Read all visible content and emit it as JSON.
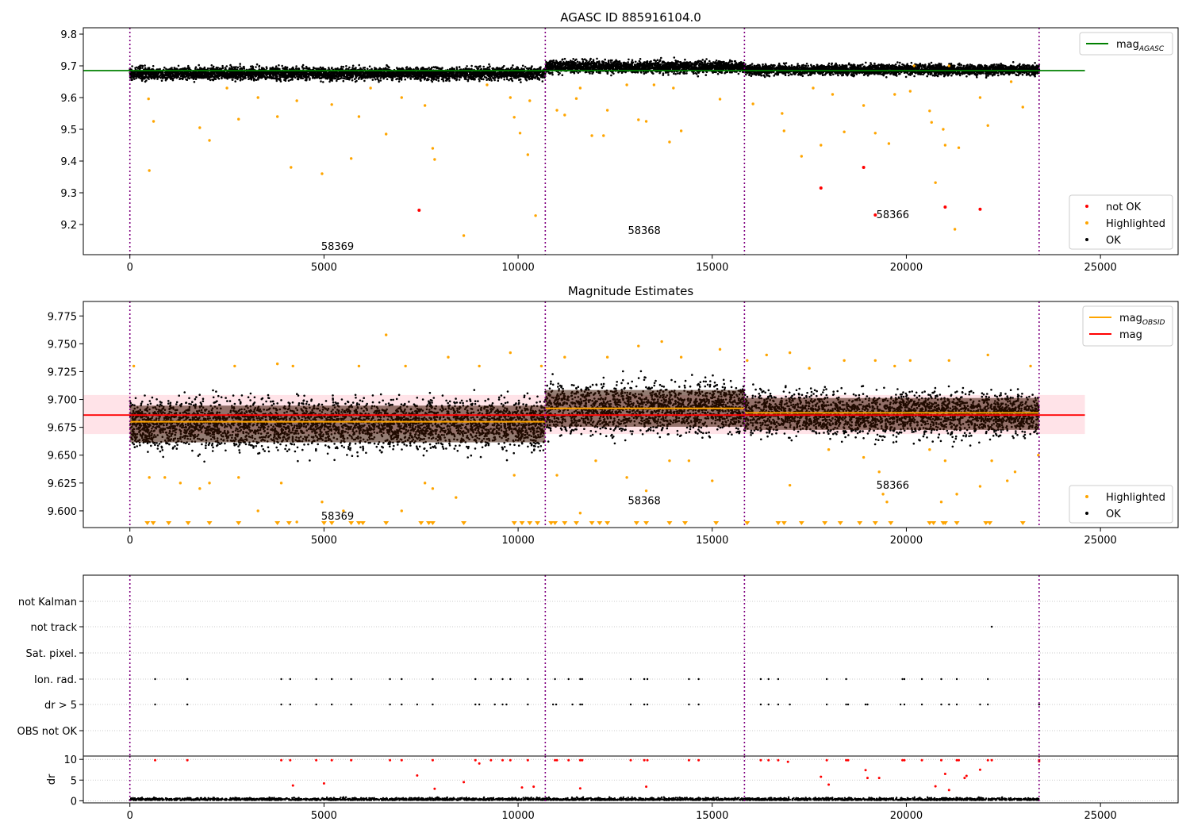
{
  "figure": {
    "top_title": "AGASC ID 885916104.0",
    "mid_title": "Magnitude Estimates"
  },
  "colors": {
    "ok": "#000000",
    "highlighted": "#ffa500",
    "not_ok": "#ff0000",
    "agasc_line": "#008000",
    "obsid_line": "#ffa500",
    "mag_line": "#ff0000",
    "mag_band": "#ffc0cb",
    "obsid_boundary": "#800080",
    "dense_band": "#3b1200"
  },
  "chart_data": [
    {
      "id": "top",
      "type": "scatter",
      "title": "AGASC ID 885916104.0",
      "xlim": [
        -1200,
        27000
      ],
      "ylim": [
        9.105,
        9.82
      ],
      "xticks": [
        0,
        5000,
        10000,
        15000,
        20000,
        25000
      ],
      "yticks": [
        9.2,
        9.3,
        9.4,
        9.5,
        9.6,
        9.7,
        9.8
      ],
      "obsid_boundaries": [
        0,
        10700,
        15830,
        23420
      ],
      "hlines": [
        {
          "name": "mag_AGASC",
          "y": 9.685,
          "x": [
            -1200,
            24600
          ],
          "color": "#008000"
        }
      ],
      "ok_band": {
        "segments": [
          {
            "x": [
              0,
              10700
            ],
            "center": 9.676,
            "halfwidth": 0.026
          },
          {
            "x": [
              10700,
              15830
            ],
            "center": 9.697,
            "halfwidth": 0.026
          },
          {
            "x": [
              15830,
              23420
            ],
            "center": 9.688,
            "halfwidth": 0.022
          }
        ]
      },
      "highlighted_points": [
        [
          500,
          9.37
        ],
        [
          610,
          9.525
        ],
        [
          480,
          9.596
        ],
        [
          1800,
          9.505
        ],
        [
          2050,
          9.465
        ],
        [
          2800,
          9.532
        ],
        [
          3800,
          9.54
        ],
        [
          4150,
          9.38
        ],
        [
          4950,
          9.36
        ],
        [
          5200,
          9.578
        ],
        [
          5700,
          9.408
        ],
        [
          5900,
          9.54
        ],
        [
          6600,
          9.485
        ],
        [
          7000,
          9.6
        ],
        [
          7600,
          9.575
        ],
        [
          7800,
          9.44
        ],
        [
          7850,
          9.405
        ],
        [
          8600,
          9.165
        ],
        [
          9900,
          9.538
        ],
        [
          10050,
          9.488
        ],
        [
          10250,
          9.42
        ],
        [
          10450,
          9.228
        ],
        [
          10300,
          9.59
        ],
        [
          11000,
          9.56
        ],
        [
          11200,
          9.545
        ],
        [
          11500,
          9.597
        ],
        [
          11900,
          9.48
        ],
        [
          12200,
          9.48
        ],
        [
          12300,
          9.56
        ],
        [
          13100,
          9.53
        ],
        [
          13300,
          9.525
        ],
        [
          13900,
          9.46
        ],
        [
          14200,
          9.495
        ],
        [
          15200,
          9.595
        ],
        [
          16050,
          9.58
        ],
        [
          16800,
          9.55
        ],
        [
          16850,
          9.495
        ],
        [
          17300,
          9.415
        ],
        [
          17800,
          9.45
        ],
        [
          18400,
          9.492
        ],
        [
          18900,
          9.575
        ],
        [
          19200,
          9.488
        ],
        [
          19550,
          9.455
        ],
        [
          20600,
          9.558
        ],
        [
          20650,
          9.522
        ],
        [
          20750,
          9.332
        ],
        [
          20950,
          9.5
        ],
        [
          21000,
          9.45
        ],
        [
          21250,
          9.185
        ],
        [
          21350,
          9.442
        ],
        [
          22100,
          9.512
        ],
        [
          9200,
          9.64
        ],
        [
          9800,
          9.6
        ],
        [
          12800,
          9.64
        ],
        [
          14000,
          9.63
        ],
        [
          18100,
          9.61
        ],
        [
          20100,
          9.62
        ],
        [
          2500,
          9.63
        ],
        [
          6200,
          9.63
        ],
        [
          3300,
          9.6
        ],
        [
          4300,
          9.59
        ],
        [
          11600,
          9.63
        ],
        [
          19700,
          9.61
        ],
        [
          21900,
          9.6
        ],
        [
          23000,
          9.57
        ],
        [
          13500,
          9.64
        ],
        [
          17600,
          9.63
        ],
        [
          22700,
          9.65
        ],
        [
          20200,
          9.7
        ],
        [
          21100,
          9.7
        ]
      ],
      "not_ok_points": [
        [
          7450,
          9.245
        ],
        [
          17800,
          9.315
        ],
        [
          18900,
          9.38
        ],
        [
          19200,
          9.23
        ],
        [
          21000,
          9.255
        ],
        [
          21900,
          9.248
        ]
      ],
      "annotations": [
        {
          "text": "58369",
          "x": 5350,
          "y": 9.12
        },
        {
          "text": "58368",
          "x": 13250,
          "y": 9.17
        },
        {
          "text": "58366",
          "x": 19650,
          "y": 9.22
        }
      ],
      "legends": [
        {
          "position": "top-right",
          "entries": [
            {
              "label": "mag",
              "sub": "AGASC",
              "kind": "line",
              "color": "#008000"
            }
          ]
        },
        {
          "position": "bottom-right",
          "entries": [
            {
              "label": "not OK",
              "kind": "dot",
              "color": "#ff0000"
            },
            {
              "label": "Highlighted",
              "kind": "dot",
              "color": "#ffa500"
            },
            {
              "label": "OK",
              "kind": "dot",
              "color": "#000000"
            }
          ]
        }
      ]
    },
    {
      "id": "mid",
      "type": "scatter",
      "title": "Magnitude Estimates",
      "xlim": [
        -1200,
        27000
      ],
      "ylim": [
        9.585,
        9.788
      ],
      "xticks": [
        0,
        5000,
        10000,
        15000,
        20000,
        25000
      ],
      "yticks": [
        9.6,
        9.625,
        9.65,
        9.675,
        9.7,
        9.725,
        9.75,
        9.775
      ],
      "obsid_boundaries": [
        0,
        10700,
        15830,
        23420
      ],
      "mag_band": {
        "y": [
          9.669,
          9.704
        ],
        "x": [
          -1200,
          24600
        ]
      },
      "hlines": [
        {
          "name": "mag",
          "y": 9.686,
          "x": [
            -1200,
            24600
          ],
          "color": "#ff0000"
        }
      ],
      "obsid_segments": [
        {
          "x": [
            0,
            10700
          ],
          "y": 9.68
        },
        {
          "x": [
            10700,
            15830
          ],
          "y": 9.692
        },
        {
          "x": [
            15830,
            23420
          ],
          "y": 9.688
        }
      ],
      "ok_band": {
        "segments": [
          {
            "x": [
              0,
              10700
            ],
            "center": 9.678,
            "halfwidth": 0.03
          },
          {
            "x": [
              10700,
              15830
            ],
            "center": 9.692,
            "halfwidth": 0.03
          },
          {
            "x": [
              15830,
              23420
            ],
            "center": 9.687,
            "halfwidth": 0.026
          }
        ]
      },
      "highlighted_points": [
        [
          100,
          9.73
        ],
        [
          500,
          9.63
        ],
        [
          900,
          9.63
        ],
        [
          1300,
          9.625
        ],
        [
          1800,
          9.62
        ],
        [
          2050,
          9.625
        ],
        [
          2700,
          9.73
        ],
        [
          2800,
          9.63
        ],
        [
          3300,
          9.6
        ],
        [
          3800,
          9.732
        ],
        [
          3900,
          9.625
        ],
        [
          4200,
          9.73
        ],
        [
          4300,
          9.59
        ],
        [
          4950,
          9.608
        ],
        [
          5500,
          9.6
        ],
        [
          5900,
          9.73
        ],
        [
          6600,
          9.758
        ],
        [
          7000,
          9.6
        ],
        [
          7100,
          9.73
        ],
        [
          7600,
          9.625
        ],
        [
          7800,
          9.62
        ],
        [
          8200,
          9.738
        ],
        [
          8400,
          9.612
        ],
        [
          9000,
          9.73
        ],
        [
          9800,
          9.742
        ],
        [
          9900,
          9.632
        ],
        [
          10600,
          9.73
        ],
        [
          11000,
          9.632
        ],
        [
          11200,
          9.738
        ],
        [
          11600,
          9.598
        ],
        [
          12000,
          9.645
        ],
        [
          12300,
          9.738
        ],
        [
          12800,
          9.63
        ],
        [
          13100,
          9.748
        ],
        [
          13300,
          9.618
        ],
        [
          13700,
          9.752
        ],
        [
          13900,
          9.645
        ],
        [
          14200,
          9.738
        ],
        [
          14400,
          9.645
        ],
        [
          15000,
          9.627
        ],
        [
          15200,
          9.745
        ],
        [
          15900,
          9.735
        ],
        [
          16400,
          9.74
        ],
        [
          17000,
          9.742
        ],
        [
          17000,
          9.623
        ],
        [
          17500,
          9.728
        ],
        [
          18000,
          9.655
        ],
        [
          18400,
          9.735
        ],
        [
          18900,
          9.648
        ],
        [
          19200,
          9.735
        ],
        [
          19300,
          9.635
        ],
        [
          19400,
          9.615
        ],
        [
          19500,
          9.608
        ],
        [
          19700,
          9.73
        ],
        [
          20100,
          9.735
        ],
        [
          20600,
          9.655
        ],
        [
          20900,
          9.608
        ],
        [
          21000,
          9.645
        ],
        [
          21100,
          9.735
        ],
        [
          21300,
          9.615
        ],
        [
          21900,
          9.622
        ],
        [
          22100,
          9.74
        ],
        [
          22200,
          9.645
        ],
        [
          22600,
          9.627
        ],
        [
          22800,
          9.635
        ],
        [
          23200,
          9.73
        ],
        [
          23400,
          9.65
        ]
      ],
      "below_range_markers": [
        450,
        600,
        1000,
        1500,
        2050,
        2800,
        3800,
        4100,
        5000,
        5200,
        5700,
        5900,
        6000,
        6600,
        7500,
        7700,
        7800,
        8600,
        9900,
        10100,
        10300,
        10500,
        10850,
        10950,
        11200,
        11500,
        11900,
        12100,
        12300,
        13050,
        13300,
        13900,
        14300,
        15100,
        15900,
        16700,
        16850,
        17300,
        17900,
        18300,
        18800,
        19200,
        19600,
        20600,
        20700,
        20950,
        21000,
        21300,
        22050,
        22150,
        23000
      ],
      "annotations": [
        {
          "text": "58369",
          "x": 5350,
          "y": 9.592
        },
        {
          "text": "58368",
          "x": 13250,
          "y": 9.606
        },
        {
          "text": "58366",
          "x": 19650,
          "y": 9.62
        }
      ],
      "legends": [
        {
          "position": "top-right",
          "entries": [
            {
              "label": "mag",
              "sub": "OBSID",
              "kind": "line",
              "color": "#ffa500"
            },
            {
              "label": "mag",
              "kind": "line",
              "color": "#ff0000"
            }
          ]
        },
        {
          "position": "bottom-right",
          "entries": [
            {
              "label": "Highlighted",
              "kind": "dot",
              "color": "#ffa500"
            },
            {
              "label": "OK",
              "kind": "dot",
              "color": "#000000"
            }
          ]
        }
      ]
    },
    {
      "id": "flags",
      "type": "scatter",
      "xlim": [
        -1200,
        27000
      ],
      "categories": [
        "not Kalman",
        "not track",
        "Sat. pixel.",
        "Ion. rad.",
        "dr > 5",
        "OBS not OK"
      ],
      "obsid_boundaries": [
        0,
        10700,
        15830,
        23420
      ],
      "flag_points": {
        "not track": [
          22200
        ],
        "Ion. rad.": [
          650,
          1480,
          3900,
          4130,
          4800,
          5200,
          5700,
          6700,
          7000,
          7800,
          8900,
          9300,
          9600,
          9800,
          10250,
          10950,
          11300,
          11600,
          11650,
          12900,
          13250,
          13330,
          14400,
          14650,
          16250,
          16450,
          16700,
          17950,
          18450,
          19900,
          19950,
          20400,
          20900,
          21300,
          22100,
          23420
        ],
        "dr > 5": [
          650,
          1480,
          3900,
          4130,
          4800,
          5200,
          5700,
          6700,
          7000,
          7400,
          7800,
          8900,
          9000,
          9400,
          9600,
          9700,
          10250,
          10900,
          10980,
          11400,
          11600,
          11650,
          12900,
          13250,
          13330,
          14400,
          14650,
          16250,
          16450,
          16700,
          17000,
          17950,
          18450,
          18500,
          18950,
          19000,
          19850,
          19950,
          20400,
          20900,
          21100,
          21300,
          21900,
          22100,
          23420
        ]
      }
    },
    {
      "id": "dr",
      "type": "scatter",
      "ylabel": "dr",
      "xlim": [
        -1200,
        27000
      ],
      "ylim": [
        -0.5,
        10.8
      ],
      "xticks": [
        0,
        5000,
        10000,
        15000,
        20000,
        25000
      ],
      "yticks": [
        0,
        5,
        10
      ],
      "obsid_boundaries": [
        0,
        10700,
        15830,
        23420
      ],
      "ok_band": {
        "y": [
          0,
          1.1
        ]
      },
      "dr_red_points": [
        [
          650,
          9.8
        ],
        [
          1480,
          9.8
        ],
        [
          3900,
          9.8
        ],
        [
          4130,
          9.8
        ],
        [
          4200,
          3.7
        ],
        [
          4800,
          9.8
        ],
        [
          5000,
          4.2
        ],
        [
          5200,
          9.8
        ],
        [
          5700,
          9.8
        ],
        [
          6700,
          9.8
        ],
        [
          7000,
          9.8
        ],
        [
          7400,
          6.1
        ],
        [
          7800,
          9.8
        ],
        [
          7850,
          2.9
        ],
        [
          8600,
          4.5
        ],
        [
          8900,
          9.8
        ],
        [
          9000,
          9.0
        ],
        [
          9300,
          9.8
        ],
        [
          9600,
          9.8
        ],
        [
          9800,
          9.8
        ],
        [
          10100,
          3.2
        ],
        [
          10250,
          9.8
        ],
        [
          10400,
          3.4
        ],
        [
          10950,
          9.8
        ],
        [
          11000,
          9.8
        ],
        [
          11300,
          9.8
        ],
        [
          11600,
          9.8
        ],
        [
          11650,
          9.8
        ],
        [
          11600,
          3.0
        ],
        [
          12900,
          9.8
        ],
        [
          13250,
          9.8
        ],
        [
          13330,
          9.8
        ],
        [
          13300,
          3.4
        ],
        [
          14400,
          9.8
        ],
        [
          14650,
          9.8
        ],
        [
          16250,
          9.8
        ],
        [
          16450,
          9.8
        ],
        [
          16700,
          9.8
        ],
        [
          16950,
          9.4
        ],
        [
          17950,
          9.8
        ],
        [
          17800,
          5.8
        ],
        [
          18000,
          3.9
        ],
        [
          18450,
          9.8
        ],
        [
          18500,
          9.8
        ],
        [
          18950,
          7.4
        ],
        [
          19000,
          5.5
        ],
        [
          19300,
          5.5
        ],
        [
          19900,
          9.8
        ],
        [
          19950,
          9.8
        ],
        [
          20400,
          9.8
        ],
        [
          20750,
          3.5
        ],
        [
          20900,
          9.8
        ],
        [
          21000,
          6.5
        ],
        [
          21100,
          2.6
        ],
        [
          21300,
          9.8
        ],
        [
          21350,
          9.8
        ],
        [
          21500,
          5.5
        ],
        [
          21550,
          6.0
        ],
        [
          21900,
          7.5
        ],
        [
          22100,
          9.8
        ],
        [
          22200,
          9.8
        ],
        [
          23420,
          9.8
        ],
        [
          23420,
          9.5
        ]
      ]
    }
  ]
}
